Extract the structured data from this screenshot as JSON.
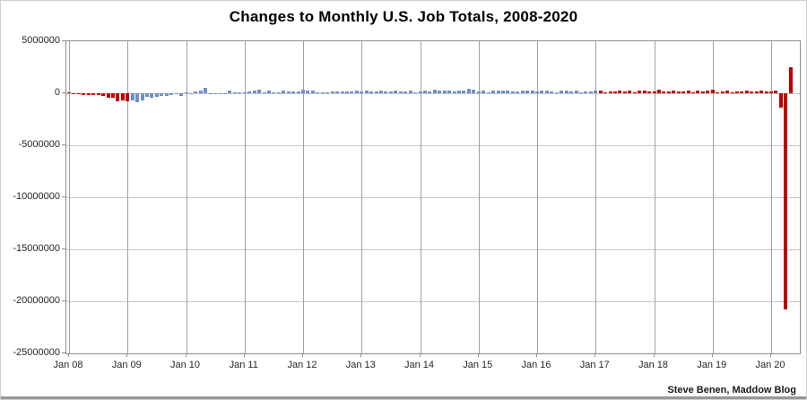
{
  "title": "Changes to Monthly U.S. Job Totals, 2008-2020",
  "credit": "Steve Benen, Maddow Blog",
  "colors": {
    "bar_red": "#c00000",
    "bar_blue": "#7090c4",
    "gridline_horizontal": "#c6c6c6",
    "gridline_vertical": "#a0a0a0",
    "axis": "#8c8c8c",
    "label_text": "#262626",
    "bottom_strip": "#979797"
  },
  "chart_data": {
    "type": "bar",
    "title": "Changes to Monthly U.S. Job Totals, 2008-2020",
    "xlabel": "",
    "ylabel": "",
    "ylim": [
      -25000000,
      5000000
    ],
    "grid": "on",
    "legend": "none",
    "y_ticks": [
      5000000,
      0,
      -5000000,
      -10000000,
      -15000000,
      -20000000,
      -25000000
    ],
    "y_tick_labels": [
      "5000000",
      "0",
      "-5000000",
      "-10000000",
      "-15000000",
      "-20000000",
      "-25000000"
    ],
    "x_tick_labels": [
      "Jan 08",
      "Jan 09",
      "Jan 10",
      "Jan 11",
      "Jan 12",
      "Jan 13",
      "Jan 14",
      "Jan 15",
      "Jan 16",
      "Jan 17",
      "Jan 18",
      "Jan 19",
      "Jan 20"
    ],
    "x_tick_interval_months": 12,
    "months_start": "Jan 2008",
    "months_end": "May 2020",
    "unit": "jobs",
    "values": [
      15000,
      -86000,
      -78000,
      -214000,
      -182000,
      -172000,
      -210000,
      -259000,
      -452000,
      -474000,
      -765000,
      -697000,
      -798000,
      -701000,
      -826000,
      -684000,
      -354000,
      -467000,
      -327000,
      -216000,
      -227000,
      -198000,
      -6000,
      -283000,
      18000,
      -50000,
      156000,
      251000,
      521000,
      -122000,
      -61000,
      -42000,
      -57000,
      277000,
      121000,
      88000,
      42000,
      188000,
      225000,
      346000,
      73000,
      235000,
      70000,
      107000,
      246000,
      202000,
      146000,
      207000,
      338000,
      257000,
      239000,
      75000,
      115000,
      87000,
      143000,
      165000,
      185000,
      160000,
      141000,
      243000,
      197000,
      280000,
      141000,
      199000,
      218000,
      146000,
      140000,
      269000,
      185000,
      189000,
      274000,
      84000,
      144000,
      222000,
      203000,
      304000,
      229000,
      267000,
      243000,
      203000,
      271000,
      243000,
      423000,
      329000,
      201000,
      266000,
      84000,
      251000,
      273000,
      228000,
      277000,
      150000,
      145000,
      295000,
      280000,
      271000,
      168000,
      237000,
      225000,
      153000,
      43000,
      297000,
      291000,
      176000,
      249000,
      124000,
      164000,
      155000,
      216000,
      232000,
      50000,
      175000,
      155000,
      239000,
      190000,
      221000,
      14000,
      271000,
      216000,
      175000,
      176000,
      324000,
      155000,
      175000,
      268000,
      208000,
      178000,
      282000,
      108000,
      277000,
      196000,
      227000,
      312000,
      56000,
      153000,
      216000,
      62000,
      178000,
      166000,
      219000,
      208000,
      185000,
      261000,
      184000,
      214000,
      251000,
      -1373000,
      -20787000,
      2509000
    ],
    "bar_color_rule": {
      "description": "red for presidential terms Jan 2008-Jan 2009 and Feb 2017-May 2020, blue for Feb 2009-Jan 2017",
      "red_index_ranges": [
        [
          0,
          12
        ],
        [
          109,
          148
        ]
      ],
      "red": "#c00000",
      "blue": "#7090c4"
    }
  }
}
